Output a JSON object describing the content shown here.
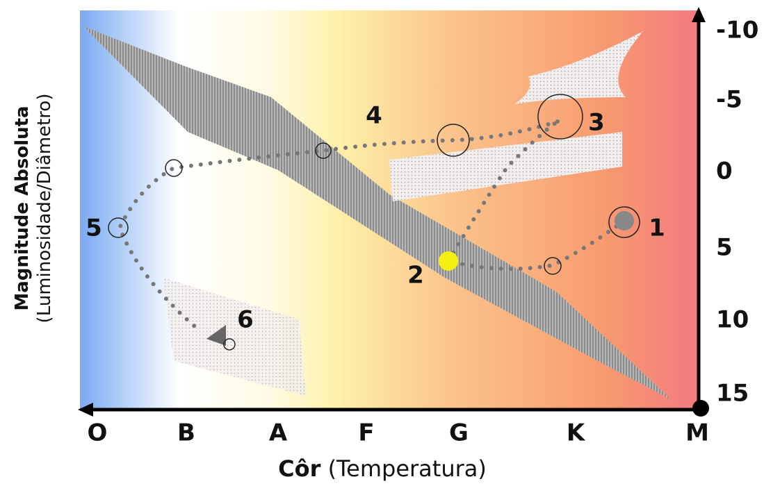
{
  "y_axis": {
    "title": "Magnitude Absoluta",
    "subtitle": "(Luminosidade/Diâmetro)",
    "ticks": [
      "-10",
      "-5",
      "0",
      "5",
      "10",
      "15"
    ]
  },
  "x_axis": {
    "title_bold": "Côr",
    "title_rest": "(Temperatura)",
    "classes": [
      "O",
      "B",
      "A",
      "F",
      "G",
      "K",
      "M"
    ]
  },
  "stages": [
    "1",
    "2",
    "3",
    "4",
    "5",
    "6"
  ]
}
